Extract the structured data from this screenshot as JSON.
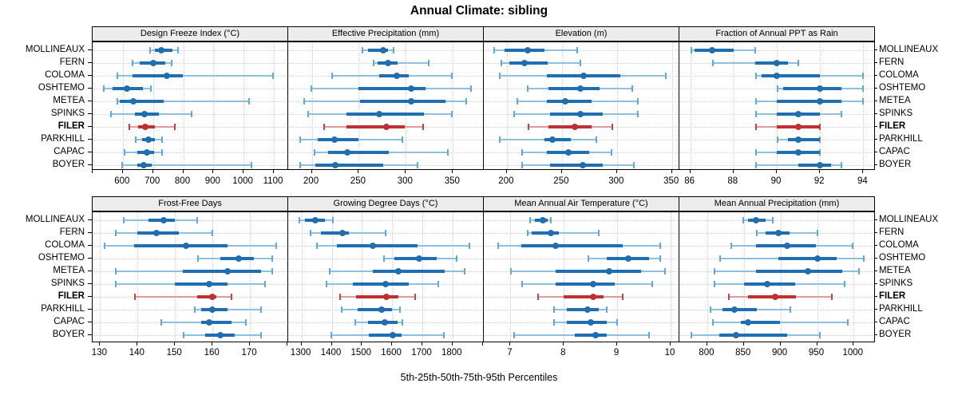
{
  "title": "Annual Climate: sibling",
  "caption": "5th-25th-50th-75th-95th Percentiles",
  "colors": {
    "series": "#1f6eb2",
    "series_light": "#8fc0e0",
    "series_cap": "#60a8d6",
    "highlight": "#bf3131",
    "highlight_light": "#dc9c9c",
    "highlight_cap": "#c24444",
    "grid": "#cccccc",
    "strip_bg": "#ececec",
    "border": "#000000",
    "text": "#000000"
  },
  "chart_data": {
    "type": "dotplot-percentile-trellis",
    "note": "Each row shows [5th,25th,50th,75th,95th] percentile whisker: thin line 5-95, thick bar 25-75, dot = median",
    "percentiles": [
      5,
      25,
      50,
      75,
      95
    ],
    "rows": 2,
    "cols": 4,
    "categories": [
      "MOLLINEAUX",
      "FERN",
      "COLOMA",
      "OSHTEMO",
      "METEA",
      "SPINKS",
      "FILER",
      "PARKHILL",
      "CAPAC",
      "BOYER"
    ],
    "highlight": "FILER",
    "panels": [
      {
        "title": "Design Freeze Index (°C)",
        "xlim": [
          500,
          1145
        ],
        "ticks": [
          500,
          600,
          700,
          800,
          900,
          1000,
          1100
        ],
        "tick_labels": [
          "",
          "600",
          "700",
          "800",
          "900",
          "1000",
          "1100"
        ],
        "values": {
          "MOLLINEAUX": [
            687,
            706,
            727,
            764,
            784
          ],
          "FERN": [
            630,
            655,
            700,
            740,
            762
          ],
          "COLOMA": [
            580,
            632,
            745,
            800,
            1098
          ],
          "OSHTEMO": [
            535,
            567,
            613,
            667,
            692
          ],
          "METEA": [
            579,
            591,
            634,
            736,
            1018
          ],
          "SPINKS": [
            558,
            640,
            672,
            720,
            827
          ],
          "FILER": [
            619,
            650,
            675,
            707,
            771
          ],
          "PARKHILL": [
            641,
            663,
            685,
            707,
            729
          ],
          "CAPAC": [
            604,
            648,
            679,
            703,
            731
          ],
          "BOYER": [
            596,
            648,
            670,
            696,
            1027
          ]
        }
      },
      {
        "title": "Effective Precipitation (mm)",
        "xlim": [
          175,
          382
        ],
        "ticks": [
          200,
          250,
          300,
          350
        ],
        "tick_labels": [
          "200",
          "250",
          "300",
          "350"
        ],
        "values": {
          "MOLLINEAUX": [
            253,
            260,
            276,
            281,
            287
          ],
          "FERN": [
            265,
            270,
            281,
            291,
            324
          ],
          "COLOMA": [
            221,
            272,
            290,
            303,
            349
          ],
          "OSHTEMO": [
            199,
            250,
            306,
            321,
            369
          ],
          "METEA": [
            191,
            251,
            306,
            342,
            364
          ],
          "SPINKS": [
            195,
            237,
            272,
            319,
            349
          ],
          "FILER": [
            212,
            237,
            279,
            299,
            318
          ],
          "PARKHILL": [
            187,
            206,
            224,
            250,
            296
          ],
          "CAPAC": [
            202,
            217,
            238,
            282,
            345
          ],
          "BOYER": [
            187,
            204,
            225,
            276,
            312
          ]
        }
      },
      {
        "title": "Elevation (m)",
        "xlim": [
          179,
          356
        ],
        "ticks": [
          200,
          250,
          300,
          350
        ],
        "tick_labels": [
          "200",
          "250",
          "300",
          "350"
        ],
        "values": {
          "MOLLINEAUX": [
            188,
            198,
            219,
            234,
            264
          ],
          "FERN": [
            194,
            202,
            216,
            237,
            267
          ],
          "COLOMA": [
            193,
            236,
            270,
            303,
            344
          ],
          "OSHTEMO": [
            218,
            238,
            267,
            284,
            314
          ],
          "METEA": [
            209,
            236,
            253,
            277,
            319
          ],
          "SPINKS": [
            206,
            239,
            267,
            287,
            319
          ],
          "FILER": [
            219,
            238,
            262,
            277,
            296
          ],
          "PARKHILL": [
            193,
            234,
            241,
            258,
            281
          ],
          "CAPAC": [
            213,
            236,
            256,
            275,
            295
          ],
          "BOYER": [
            213,
            239,
            269,
            287,
            315
          ]
        }
      },
      {
        "title": "Fraction of Annual PPT as Rain",
        "xlim": [
          85.5,
          94.5
        ],
        "ticks": [
          86,
          88,
          90,
          92,
          94
        ],
        "tick_labels": [
          "86",
          "88",
          "90",
          "92",
          "94"
        ],
        "values": {
          "MOLLINEAUX": [
            86,
            86.2,
            87,
            88,
            89
          ],
          "FERN": [
            87,
            89,
            90,
            90.5,
            91
          ],
          "COLOMA": [
            89,
            89.3,
            90,
            92,
            94
          ],
          "OSHTEMO": [
            90,
            90.3,
            92,
            93,
            94
          ],
          "METEA": [
            89,
            90,
            92,
            93,
            94
          ],
          "SPINKS": [
            89,
            90,
            91,
            92,
            93
          ],
          "FILER": [
            89,
            90,
            91,
            92,
            92
          ],
          "PARKHILL": [
            90,
            90.5,
            91,
            92,
            92
          ],
          "CAPAC": [
            89,
            90,
            91,
            92,
            92
          ],
          "BOYER": [
            89,
            91,
            92,
            92.5,
            93
          ]
        }
      },
      {
        "title": "Frost-Free Days",
        "xlim": [
          128,
          180
        ],
        "ticks": [
          130,
          140,
          150,
          160,
          170,
          180
        ],
        "tick_labels": [
          "130",
          "140",
          "150",
          "160",
          "170",
          ""
        ],
        "values": {
          "MOLLINEAUX": [
            136,
            143,
            147,
            150,
            156
          ],
          "FERN": [
            134,
            140,
            145,
            151,
            160
          ],
          "COLOMA": [
            131,
            139,
            153,
            164,
            177
          ],
          "OSHTEMO": [
            156,
            162,
            167,
            171,
            176
          ],
          "METEA": [
            134,
            152,
            164,
            173,
            176
          ],
          "SPINKS": [
            134,
            150,
            159,
            164,
            174
          ],
          "FILER": [
            139,
            156,
            160,
            161,
            165
          ],
          "PARKHILL": [
            155,
            157,
            160,
            164,
            173
          ],
          "CAPAC": [
            146,
            157,
            159,
            165,
            169
          ],
          "BOYER": [
            152,
            158,
            162,
            166,
            173
          ]
        }
      },
      {
        "title": "Growing Degree Days (°C)",
        "xlim": [
          1256,
          1901
        ],
        "ticks": [
          1300,
          1400,
          1500,
          1600,
          1700,
          1800,
          1900
        ],
        "tick_labels": [
          "1300",
          "1400",
          "1500",
          "1600",
          "1700",
          "1800",
          ""
        ],
        "values": {
          "MOLLINEAUX": [
            1290,
            1312,
            1346,
            1379,
            1404
          ],
          "FERN": [
            1326,
            1364,
            1436,
            1456,
            1579
          ],
          "COLOMA": [
            1348,
            1416,
            1537,
            1684,
            1857
          ],
          "OSHTEMO": [
            1570,
            1607,
            1690,
            1747,
            1813
          ],
          "METEA": [
            1392,
            1535,
            1620,
            1775,
            1839
          ],
          "SPINKS": [
            1379,
            1471,
            1579,
            1655,
            1752
          ],
          "FILER": [
            1425,
            1480,
            1580,
            1620,
            1675
          ],
          "PARKHILL": [
            1430,
            1486,
            1565,
            1600,
            1625
          ],
          "CAPAC": [
            1474,
            1521,
            1576,
            1618,
            1635
          ],
          "BOYER": [
            1395,
            1524,
            1601,
            1632,
            1772
          ]
        }
      },
      {
        "title": "Mean Annual Air Temperature (°C)",
        "xlim": [
          6.5,
          10.15
        ],
        "ticks": [
          7,
          8,
          9,
          10
        ],
        "tick_labels": [
          "7",
          "8",
          "9",
          "10"
        ],
        "values": {
          "MOLLINEAUX": [
            7.35,
            7.45,
            7.6,
            7.7,
            7.75
          ],
          "FERN": [
            7.3,
            7.4,
            7.75,
            7.9,
            8.65
          ],
          "COLOMA": [
            6.75,
            7.2,
            7.85,
            9.1,
            9.8
          ],
          "OSHTEMO": [
            8.45,
            8.8,
            9.2,
            9.6,
            9.8
          ],
          "METEA": [
            7.0,
            7.85,
            8.85,
            9.45,
            9.9
          ],
          "SPINKS": [
            7.2,
            7.85,
            8.55,
            8.95,
            9.65
          ],
          "FILER": [
            7.5,
            8.0,
            8.55,
            8.75,
            9.1
          ],
          "PARKHILL": [
            7.8,
            8.05,
            8.45,
            8.65,
            8.8
          ],
          "CAPAC": [
            7.8,
            8.05,
            8.5,
            8.8,
            9.0
          ],
          "BOYER": [
            7.05,
            8.2,
            8.6,
            8.8,
            9.6
          ]
        }
      },
      {
        "title": "Mean Annual Precipitation (mm)",
        "xlim": [
          762,
          1028
        ],
        "ticks": [
          800,
          850,
          900,
          950,
          1000
        ],
        "tick_labels": [
          "800",
          "850",
          "900",
          "950",
          "1000"
        ],
        "values": {
          "MOLLINEAUX": [
            848,
            856,
            867,
            880,
            889
          ],
          "FERN": [
            867,
            880,
            897,
            913,
            951
          ],
          "COLOMA": [
            832,
            867,
            909,
            949,
            999
          ],
          "OSHTEMO": [
            816,
            897,
            950,
            977,
            1014
          ],
          "METEA": [
            809,
            867,
            937,
            984,
            1007
          ],
          "SPINKS": [
            809,
            850,
            882,
            920,
            988
          ],
          "FILER": [
            828,
            856,
            893,
            921,
            970
          ],
          "PARKHILL": [
            803,
            821,
            837,
            868,
            913
          ],
          "CAPAC": [
            807,
            846,
            856,
            899,
            992
          ],
          "BOYER": [
            777,
            816,
            839,
            909,
            954
          ]
        }
      }
    ]
  }
}
